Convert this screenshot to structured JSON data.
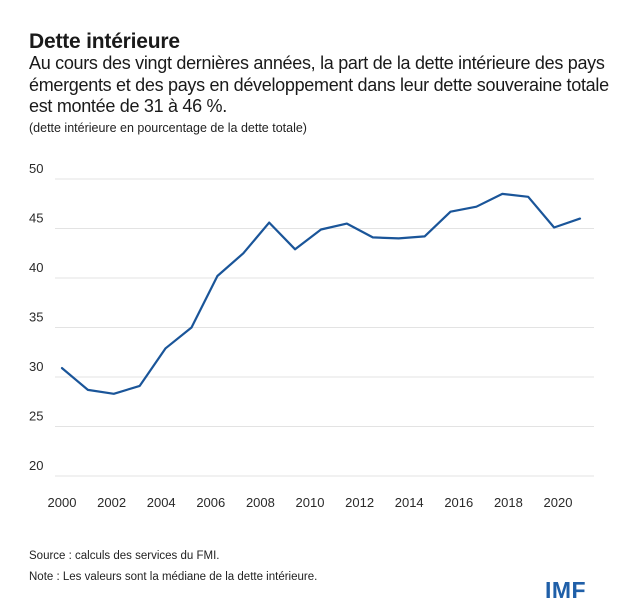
{
  "header": {
    "title": "Dette intérieure",
    "subtitle": "Au cours des vingt dernières années, la part de la dette intérieure des pays émergents et des pays en développement dans leur dette souveraine totale est montée de 31 à 46 %.",
    "unit_note": "(dette intérieure en pourcentage de la dette totale)"
  },
  "chart_data": {
    "type": "line",
    "title": "Dette intérieure",
    "xlabel": "",
    "ylabel": "dette intérieure en pourcentage de la dette totale",
    "x": [
      2000,
      2001,
      2002,
      2003,
      2004,
      2005,
      2006,
      2007,
      2008,
      2009,
      2010,
      2011,
      2012,
      2013,
      2014,
      2015,
      2016,
      2017,
      2018,
      2019,
      2020
    ],
    "series": [
      {
        "name": "Dette intérieure (médiane, % de la dette totale)",
        "color": "#1a5599",
        "values": [
          30.9,
          28.7,
          28.3,
          29.1,
          32.9,
          35.0,
          40.2,
          42.5,
          45.6,
          42.9,
          44.9,
          45.5,
          44.1,
          44.0,
          44.2,
          46.7,
          47.2,
          48.5,
          48.2,
          45.1,
          46.0
        ]
      }
    ],
    "yticks": [
      20,
      25,
      30,
      35,
      40,
      45,
      50
    ],
    "xticks": [
      2000,
      2002,
      2004,
      2006,
      2008,
      2010,
      2012,
      2014,
      2016,
      2018,
      2020
    ],
    "ylim": [
      20,
      50
    ],
    "xlim": [
      2000,
      2020
    ],
    "grid": true,
    "legend": "none"
  },
  "footer": {
    "source": "Source : calculs des services du FMI.",
    "note": "Note : Les valeurs sont la médiane de la dette intérieure.",
    "logo": "IMF"
  },
  "colors": {
    "line": "#1a5599",
    "grid": "#e3e3e3",
    "logo": "#1f5fa8"
  }
}
